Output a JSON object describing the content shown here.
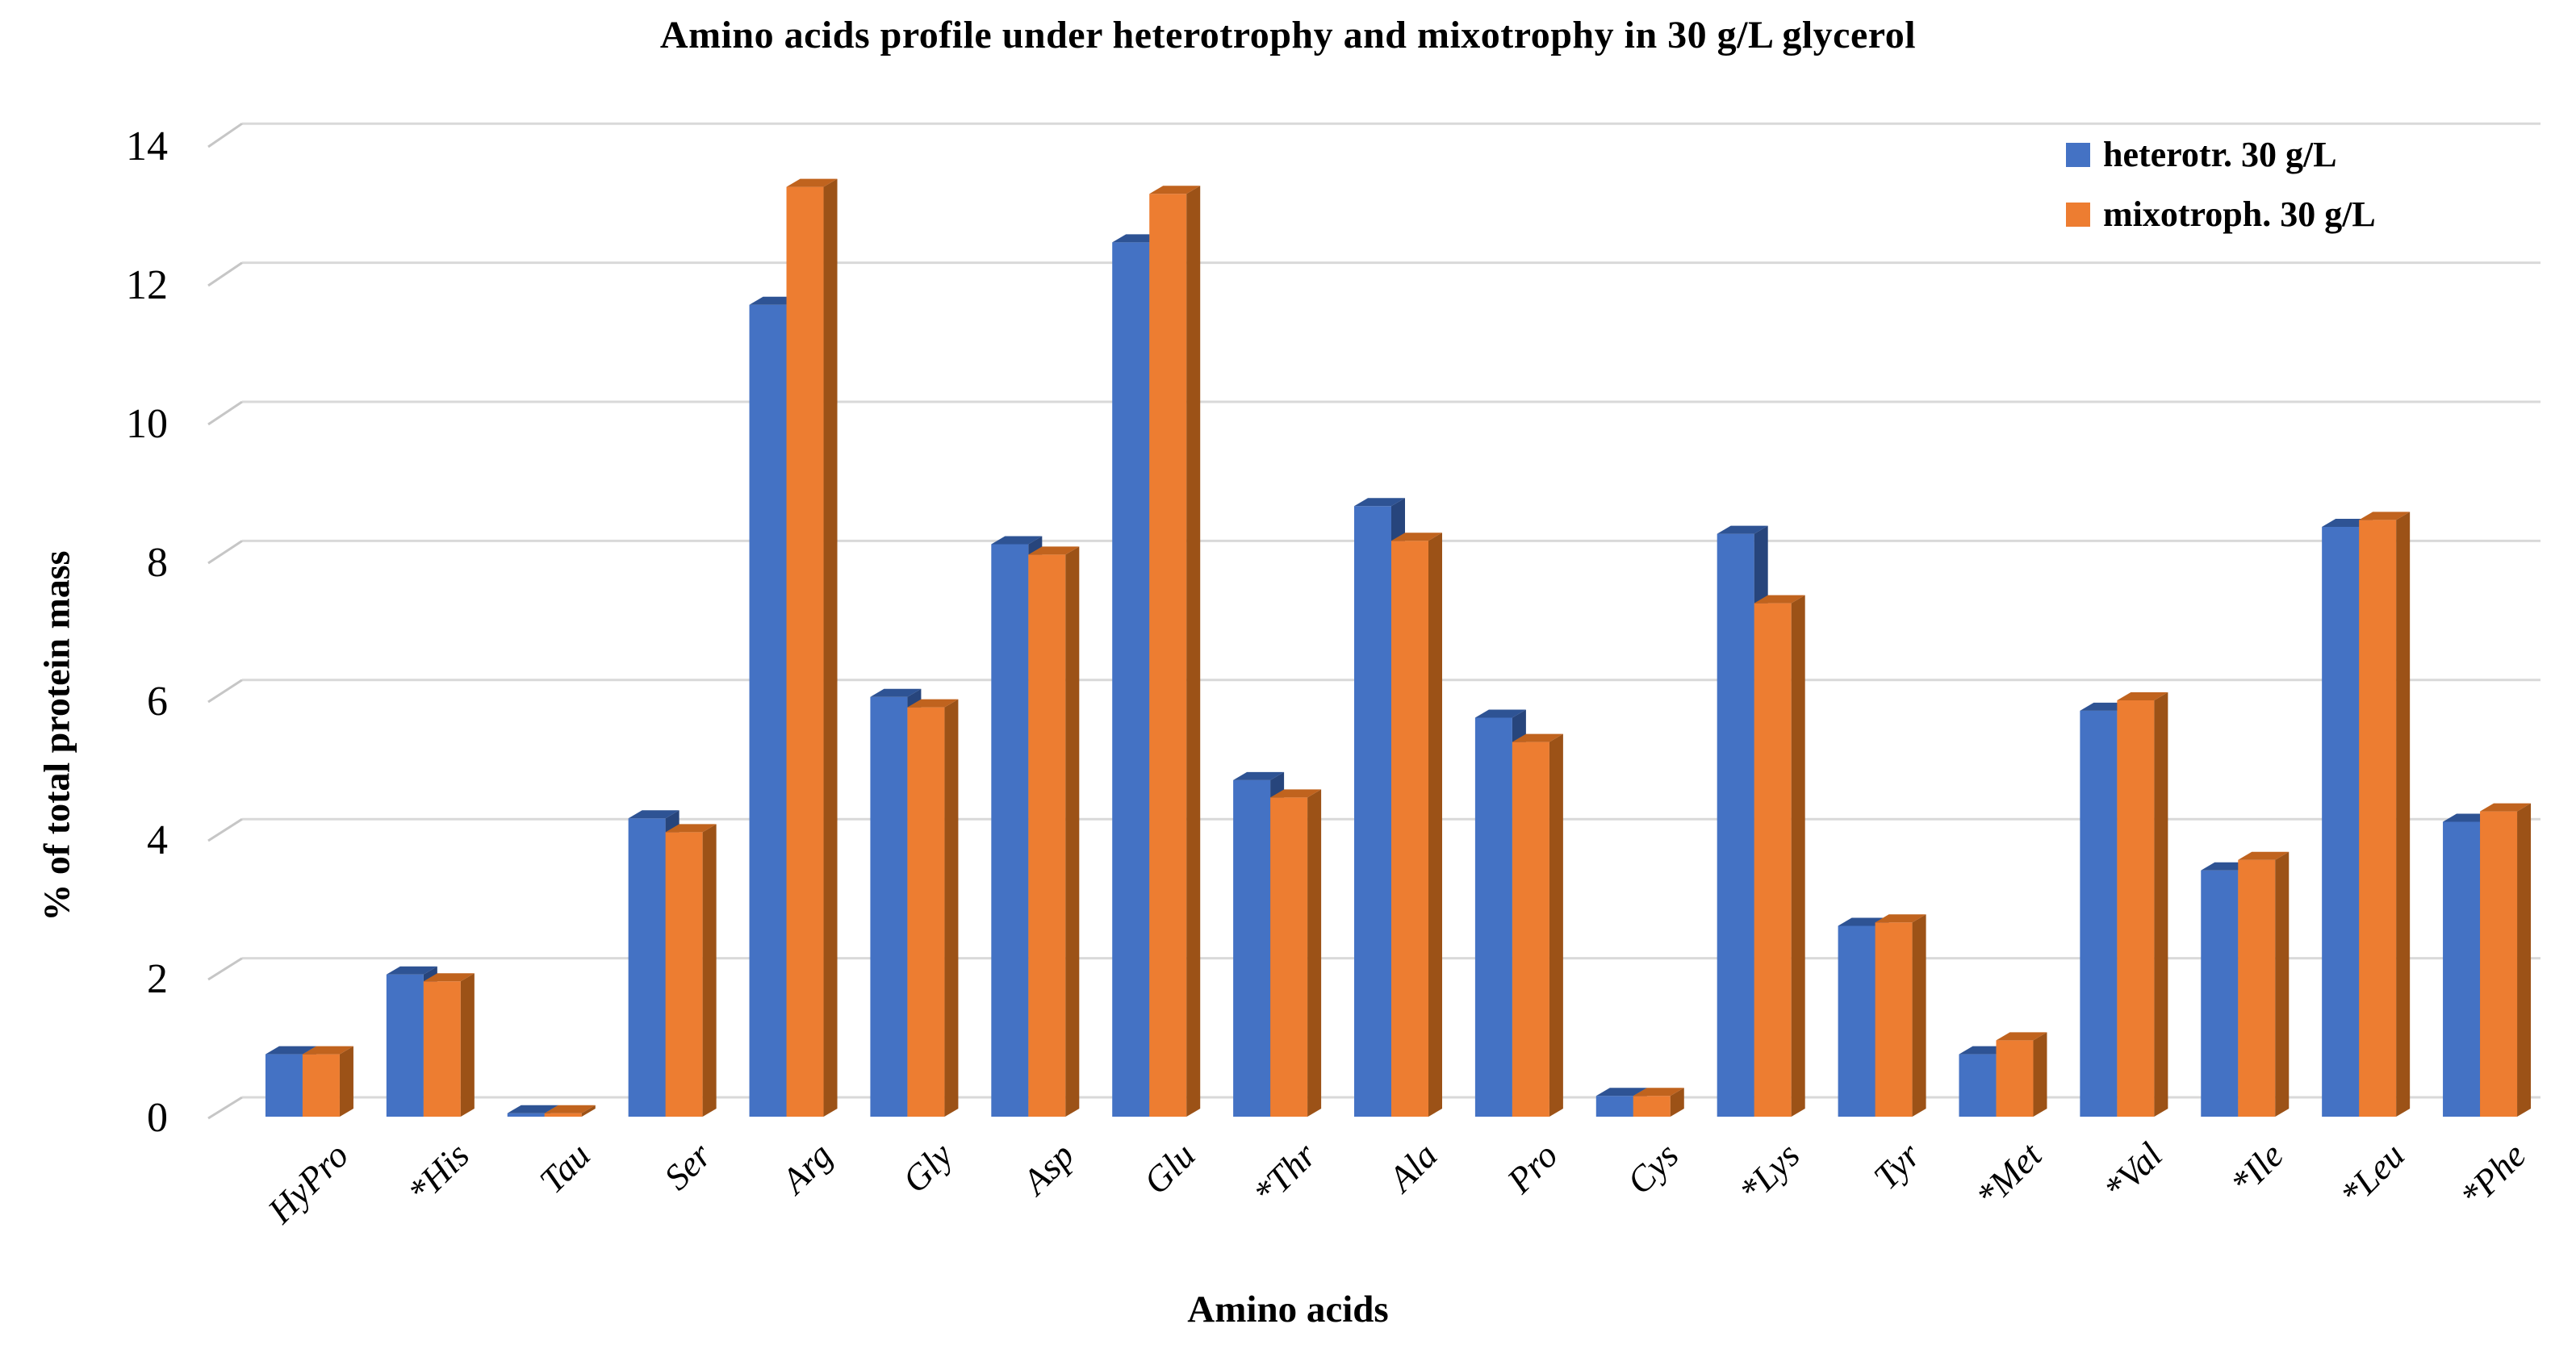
{
  "chart_data": {
    "type": "bar",
    "style": "3d-clustered-column",
    "title": "Amino acids profile under heterotrophy and mixotrophy in 30 g/L glycerol",
    "xlabel": "Amino acids",
    "ylabel": "% of total protein mass",
    "ylim": [
      0,
      14
    ],
    "yticks": [
      0,
      2,
      4,
      6,
      8,
      10,
      12,
      14
    ],
    "grid": "horizontal",
    "legend_position": "top-right",
    "categories": [
      "HyPro",
      "*His",
      "Tau",
      "Ser",
      "Arg",
      "Gly",
      "Asp",
      "Glu",
      "*Thr",
      "Ala",
      "Pro",
      "Cys",
      "*Lys",
      "Tyr",
      "*Met",
      "*Val",
      "*Ile",
      "*Leu",
      "*Phe"
    ],
    "series": [
      {
        "name": "heterotr. 30 g/L",
        "color": "#4472C4",
        "values": [
          0.9,
          2.05,
          0.05,
          4.3,
          11.7,
          6.05,
          8.25,
          12.6,
          4.85,
          8.8,
          5.75,
          0.3,
          8.4,
          2.75,
          0.9,
          5.85,
          3.55,
          8.5,
          4.25
        ]
      },
      {
        "name": "mixotroph. 30 g/L",
        "color": "#ED7D31",
        "values": [
          0.9,
          1.95,
          0.05,
          4.1,
          13.4,
          5.9,
          8.1,
          13.3,
          4.6,
          8.3,
          5.4,
          0.3,
          7.4,
          2.8,
          1.1,
          6.0,
          3.7,
          8.6,
          4.4
        ]
      }
    ]
  },
  "colors": {
    "bar_blue": "#4472C4",
    "bar_blue_top": "#2E5394",
    "bar_blue_side": "#27457C",
    "bar_orange": "#ED7D31",
    "bar_orange_top": "#C0631E",
    "bar_orange_side": "#9C5217",
    "gridline": "#D9D9D9",
    "tick_line": "#C6C6C6",
    "text": "#000000",
    "background": "#FFFFFF"
  }
}
